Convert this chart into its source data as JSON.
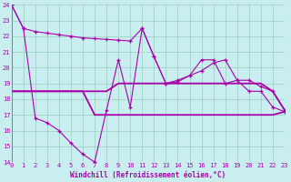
{
  "line_upper": [
    24,
    22.5,
    22.3,
    22.2,
    22.1,
    22.0,
    21.9,
    21.85,
    21.8,
    21.75,
    21.7,
    22.5,
    20.7,
    19.0,
    19.1,
    19.5,
    19.8,
    20.3,
    20.5,
    19.2,
    19.2,
    18.8,
    18.5,
    17.3
  ],
  "line_mid_upper": [
    18.5,
    18.5,
    18.5,
    18.5,
    18.5,
    18.5,
    18.5,
    18.5,
    18.5,
    19.0,
    19.0,
    19.0,
    19.0,
    19.0,
    19.0,
    19.0,
    19.0,
    19.0,
    19.0,
    19.0,
    19.0,
    19.0,
    18.5,
    17.3
  ],
  "line_mid_lower": [
    18.5,
    18.5,
    18.5,
    18.5,
    18.5,
    18.5,
    18.5,
    17.0,
    17.0,
    17.0,
    17.0,
    17.0,
    17.0,
    17.0,
    17.0,
    17.0,
    17.0,
    17.0,
    17.0,
    17.0,
    17.0,
    17.0,
    17.0,
    17.2
  ],
  "line_lower": [
    24,
    22.5,
    16.8,
    16.5,
    16.0,
    15.2,
    14.5,
    14.0,
    17.3,
    20.5,
    17.5,
    22.5,
    20.7,
    19.0,
    19.2,
    19.5,
    20.5,
    20.5,
    19.0,
    19.2,
    18.5,
    18.5,
    17.5,
    17.2
  ],
  "bg_color": "#c8eef0",
  "grid_color": "#99ccbb",
  "line_color": "#aa00aa",
  "xlabel": "Windchill (Refroidissement éolien,°C)",
  "ylim": [
    14,
    24
  ],
  "xlim": [
    0,
    23
  ],
  "yticks": [
    14,
    15,
    16,
    17,
    18,
    19,
    20,
    21,
    22,
    23,
    24
  ],
  "xticks": [
    0,
    1,
    2,
    3,
    4,
    5,
    6,
    7,
    8,
    9,
    10,
    11,
    12,
    13,
    14,
    15,
    16,
    17,
    18,
    19,
    20,
    21,
    22,
    23
  ]
}
